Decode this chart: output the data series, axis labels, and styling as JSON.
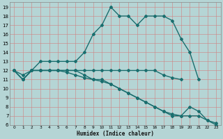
{
  "title": "",
  "xlabel": "Humidex (Indice chaleur)",
  "bg_color": "#b5d5d5",
  "grid_color": "#e8f4f4",
  "line_color": "#1a6e6e",
  "xlim": [
    -0.5,
    23.5
  ],
  "ylim": [
    6,
    19.5
  ],
  "xticks": [
    0,
    1,
    2,
    3,
    4,
    5,
    6,
    7,
    8,
    9,
    10,
    11,
    12,
    13,
    14,
    15,
    16,
    17,
    18,
    19,
    20,
    21,
    22,
    23
  ],
  "yticks": [
    6,
    7,
    8,
    9,
    10,
    11,
    12,
    13,
    14,
    15,
    16,
    17,
    18,
    19
  ],
  "curve_upper": [
    12,
    11,
    12,
    13,
    13,
    13,
    13,
    13,
    14,
    16,
    17,
    19,
    18,
    18,
    17,
    18,
    18,
    18,
    17.5,
    15.5,
    14,
    11,
    null,
    null
  ],
  "curve_mid": [
    12,
    11,
    12,
    12,
    12,
    12,
    12,
    12,
    12,
    12,
    12,
    12,
    12,
    12,
    12,
    12,
    12,
    11.5,
    11.2,
    11,
    null,
    null,
    null,
    null
  ],
  "curve_lower": [
    12,
    11,
    12,
    12,
    12,
    12,
    12,
    12,
    11.5,
    11,
    11,
    10.5,
    10,
    9.5,
    9,
    8.5,
    8,
    7.5,
    7.2,
    7,
    8,
    7.5,
    6.5,
    6.2
  ],
  "curve_lower2": [
    12,
    11.5,
    12,
    12,
    12,
    12,
    11.8,
    11.5,
    11.2,
    11,
    10.8,
    10.5,
    10,
    9.5,
    9,
    8.5,
    8,
    7.5,
    7,
    7,
    7,
    7,
    6.5,
    6
  ]
}
